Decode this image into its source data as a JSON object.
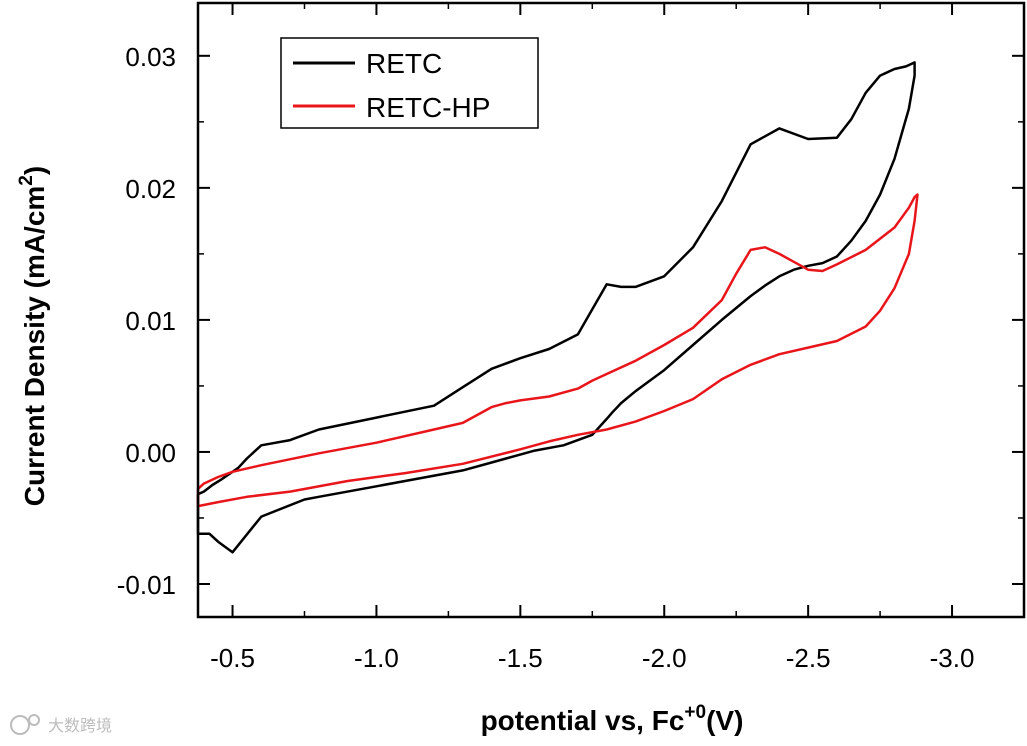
{
  "chart_data": {
    "type": "line",
    "title": "",
    "xlabel": "potential vs, Fc",
    "xlabel_sup": "+0",
    "xlabel_unit": "(V)",
    "ylabel": "Current Density (mA/cm",
    "ylabel_sup": "2",
    "ylabel_end": ")",
    "xlim": [
      -0.38,
      -3.25
    ],
    "ylim": [
      -0.0125,
      0.034
    ],
    "x_ticks": [
      -0.5,
      -1.0,
      -1.5,
      -2.0,
      -2.5,
      -3.0
    ],
    "x_tick_labels": [
      "-0.5",
      "-1.0",
      "-1.5",
      "-2.0",
      "-2.5",
      "-3.0"
    ],
    "y_ticks": [
      -0.01,
      0.0,
      0.01,
      0.02,
      0.03
    ],
    "y_tick_labels": [
      "-0.01",
      "0.00",
      "0.01",
      "0.02",
      "0.03"
    ],
    "grid": false,
    "legend": {
      "position": "top-left",
      "entries": [
        "RETC",
        "RETC-HP"
      ]
    },
    "series": [
      {
        "name": "RETC",
        "color": "#000000",
        "x": [
          -0.38,
          -0.42,
          -0.45,
          -0.5,
          -0.6,
          -0.75,
          -0.8,
          -1.0,
          -1.3,
          -1.4,
          -1.45,
          -1.5,
          -1.55,
          -1.65,
          -1.75,
          -1.8,
          -1.82,
          -1.85,
          -1.9,
          -2.0,
          -2.1,
          -2.2,
          -2.3,
          -2.35,
          -2.4,
          -2.45,
          -2.5,
          -2.55,
          -2.6,
          -2.65,
          -2.7,
          -2.75,
          -2.8,
          -2.85,
          -2.87,
          -2.87,
          -2.86,
          -2.84,
          -2.8,
          -2.75,
          -2.7,
          -2.65,
          -2.6,
          -2.5,
          -2.4,
          -2.3,
          -2.2,
          -2.1,
          -2.0,
          -1.9,
          -1.85,
          -1.8,
          -1.75,
          -1.7,
          -1.6,
          -1.5,
          -1.4,
          -1.3,
          -1.2,
          -1.0,
          -0.8,
          -0.7,
          -0.6,
          -0.55,
          -0.52,
          -0.5,
          -0.48,
          -0.46,
          -0.43,
          -0.4,
          -0.38
        ],
        "y": [
          -0.0062,
          -0.0062,
          -0.0068,
          -0.0076,
          -0.0049,
          -0.0036,
          -0.0034,
          -0.0026,
          -0.0014,
          -0.0008,
          -0.0005,
          -0.0002,
          0.0001,
          0.0005,
          0.0013,
          0.0025,
          0.003,
          0.0037,
          0.0046,
          0.0062,
          0.0081,
          0.01,
          0.0118,
          0.0126,
          0.0133,
          0.0138,
          0.0141,
          0.0143,
          0.0148,
          0.016,
          0.0175,
          0.0195,
          0.0222,
          0.026,
          0.0285,
          0.0295,
          0.0294,
          0.0292,
          0.029,
          0.0285,
          0.0272,
          0.0252,
          0.0238,
          0.0237,
          0.0245,
          0.0233,
          0.019,
          0.0155,
          0.0133,
          0.0125,
          0.0125,
          0.0127,
          0.0108,
          0.0089,
          0.0078,
          0.0071,
          0.0063,
          0.0049,
          0.0035,
          0.0026,
          0.0017,
          0.0009,
          0.0005,
          -0.0005,
          -0.0012,
          -0.0015,
          -0.0018,
          -0.0021,
          -0.0025,
          -0.003,
          -0.0032
        ]
      },
      {
        "name": "RETC-HP",
        "color": "#e8161b",
        "x": [
          -0.38,
          -0.45,
          -0.55,
          -0.7,
          -0.9,
          -1.1,
          -1.3,
          -1.5,
          -1.6,
          -1.7,
          -1.8,
          -1.9,
          -2.0,
          -2.1,
          -2.2,
          -2.3,
          -2.4,
          -2.5,
          -2.6,
          -2.7,
          -2.75,
          -2.8,
          -2.85,
          -2.87,
          -2.88,
          -2.87,
          -2.85,
          -2.8,
          -2.7,
          -2.6,
          -2.55,
          -2.5,
          -2.45,
          -2.4,
          -2.35,
          -2.3,
          -2.25,
          -2.2,
          -2.1,
          -2.0,
          -1.9,
          -1.8,
          -1.75,
          -1.7,
          -1.6,
          -1.5,
          -1.45,
          -1.4,
          -1.3,
          -1.2,
          -1.0,
          -0.8,
          -0.6,
          -0.5,
          -0.45,
          -0.4,
          -0.38
        ],
        "y": [
          -0.0041,
          -0.0038,
          -0.0034,
          -0.003,
          -0.0022,
          -0.0016,
          -0.0009,
          0.0002,
          0.0008,
          0.0013,
          0.0017,
          0.0023,
          0.0031,
          0.004,
          0.0055,
          0.0066,
          0.0074,
          0.0079,
          0.0084,
          0.0095,
          0.0107,
          0.0124,
          0.015,
          0.0175,
          0.0195,
          0.0193,
          0.0185,
          0.017,
          0.0153,
          0.0142,
          0.0137,
          0.0138,
          0.0144,
          0.015,
          0.0155,
          0.0153,
          0.0135,
          0.0115,
          0.0094,
          0.0081,
          0.0069,
          0.0059,
          0.0054,
          0.0048,
          0.0042,
          0.0039,
          0.0037,
          0.0034,
          0.0022,
          0.0017,
          0.0007,
          -0.0001,
          -0.001,
          -0.0015,
          -0.0019,
          -0.0024,
          -0.0028
        ]
      }
    ]
  },
  "watermark": {
    "text": "大数跨境",
    "color": "#bcbcbc"
  }
}
